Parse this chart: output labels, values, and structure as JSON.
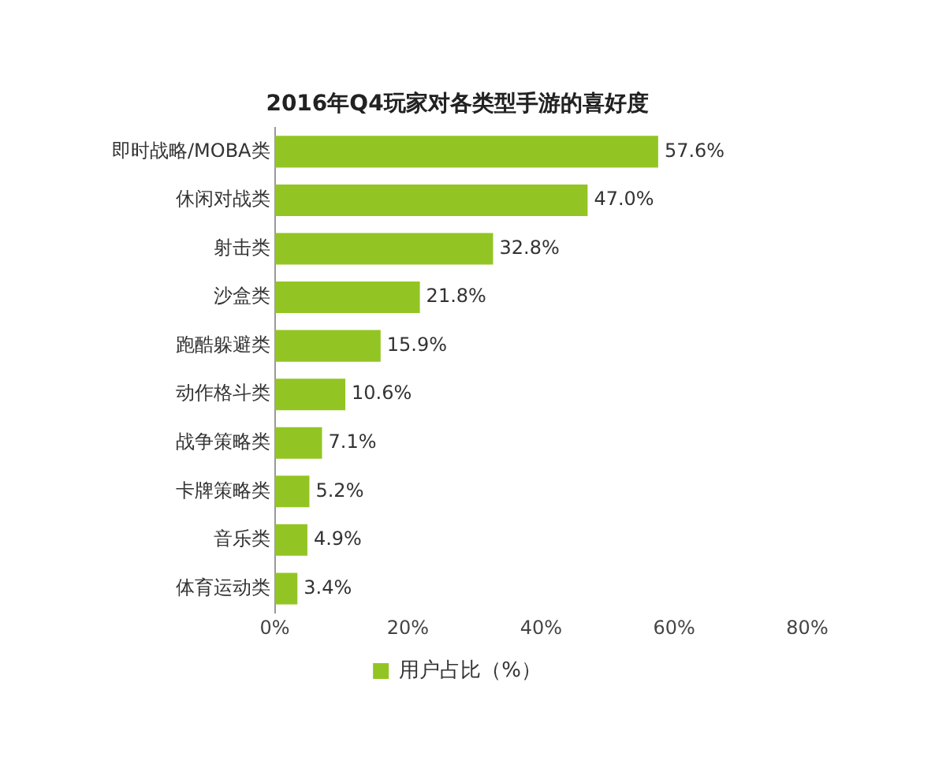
{
  "chart_data": {
    "type": "bar",
    "orientation": "horizontal",
    "title": "2016年Q4玩家对各类型手游的喜好度",
    "categories": [
      "即时战略/MOBA类",
      "休闲对战类",
      "射击类",
      "沙盒类",
      "跑酷躲避类",
      "动作格斗类",
      "战争策略类",
      "卡牌策略类",
      "音乐类",
      "体育运动类"
    ],
    "series": [
      {
        "name": "用户占比（%）",
        "color": "#92c523",
        "values": [
          57.6,
          47.0,
          32.8,
          21.8,
          15.9,
          10.6,
          7.1,
          5.2,
          4.9,
          3.4
        ],
        "value_labels": [
          "57.6%",
          "47.0%",
          "32.8%",
          "21.8%",
          "15.9%",
          "10.6%",
          "7.1%",
          "5.2%",
          "4.9%",
          "3.4%"
        ]
      }
    ],
    "xlim": [
      0,
      80
    ],
    "xticks": [
      {
        "value": 0,
        "label": "0%"
      },
      {
        "value": 20,
        "label": "20%"
      },
      {
        "value": 40,
        "label": "40%"
      },
      {
        "value": 60,
        "label": "60%"
      },
      {
        "value": 80,
        "label": "80%"
      }
    ],
    "grid": false,
    "legend": "bottom"
  }
}
